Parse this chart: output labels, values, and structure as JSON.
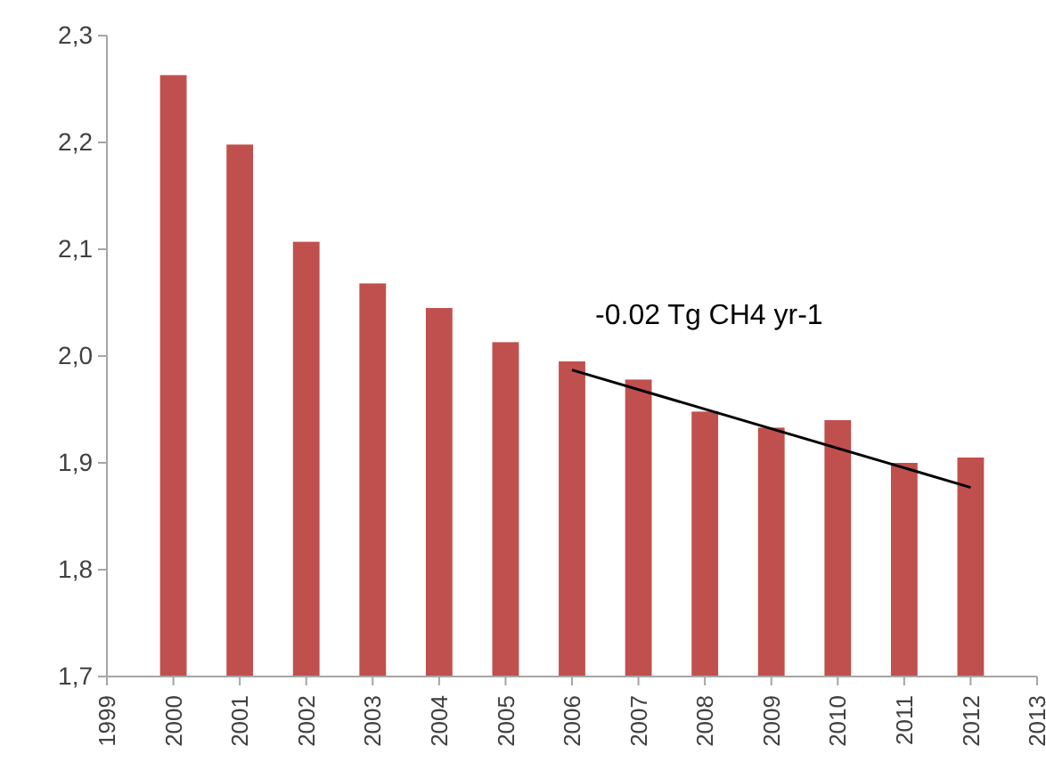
{
  "chart_data": {
    "type": "bar",
    "x": [
      2000,
      2001,
      2002,
      2003,
      2004,
      2005,
      2006,
      2007,
      2008,
      2009,
      2010,
      2011,
      2012
    ],
    "series": [
      {
        "color": "#c0504d",
        "values": [
          2.263,
          2.198,
          2.107,
          2.068,
          2.045,
          2.013,
          1.995,
          1.978,
          1.948,
          1.933,
          1.94,
          1.9,
          1.905
        ]
      },
      {
        "type": "line",
        "color": "#000000",
        "x": [
          2006,
          2012
        ],
        "values": [
          1.987,
          1.877
        ]
      }
    ],
    "xlim": [
      1999,
      2013
    ],
    "xticks": [
      1999,
      2000,
      2001,
      2002,
      2003,
      2004,
      2005,
      2006,
      2007,
      2008,
      2009,
      2010,
      2011,
      2012,
      2013
    ],
    "ylim": [
      1.7,
      2.3
    ],
    "yticks": [
      {
        "value": 1.7,
        "label": "1,7"
      },
      {
        "value": 1.8,
        "label": "1,8"
      },
      {
        "value": 1.9,
        "label": "1,9"
      },
      {
        "value": 2.0,
        "label": "2,0"
      },
      {
        "value": 2.1,
        "label": "2,1"
      },
      {
        "value": 2.2,
        "label": "2,2"
      },
      {
        "value": 2.3,
        "label": "2,3"
      }
    ],
    "annotations": [
      "-0.02 Tg CH4 yr-1"
    ],
    "grid": false
  }
}
